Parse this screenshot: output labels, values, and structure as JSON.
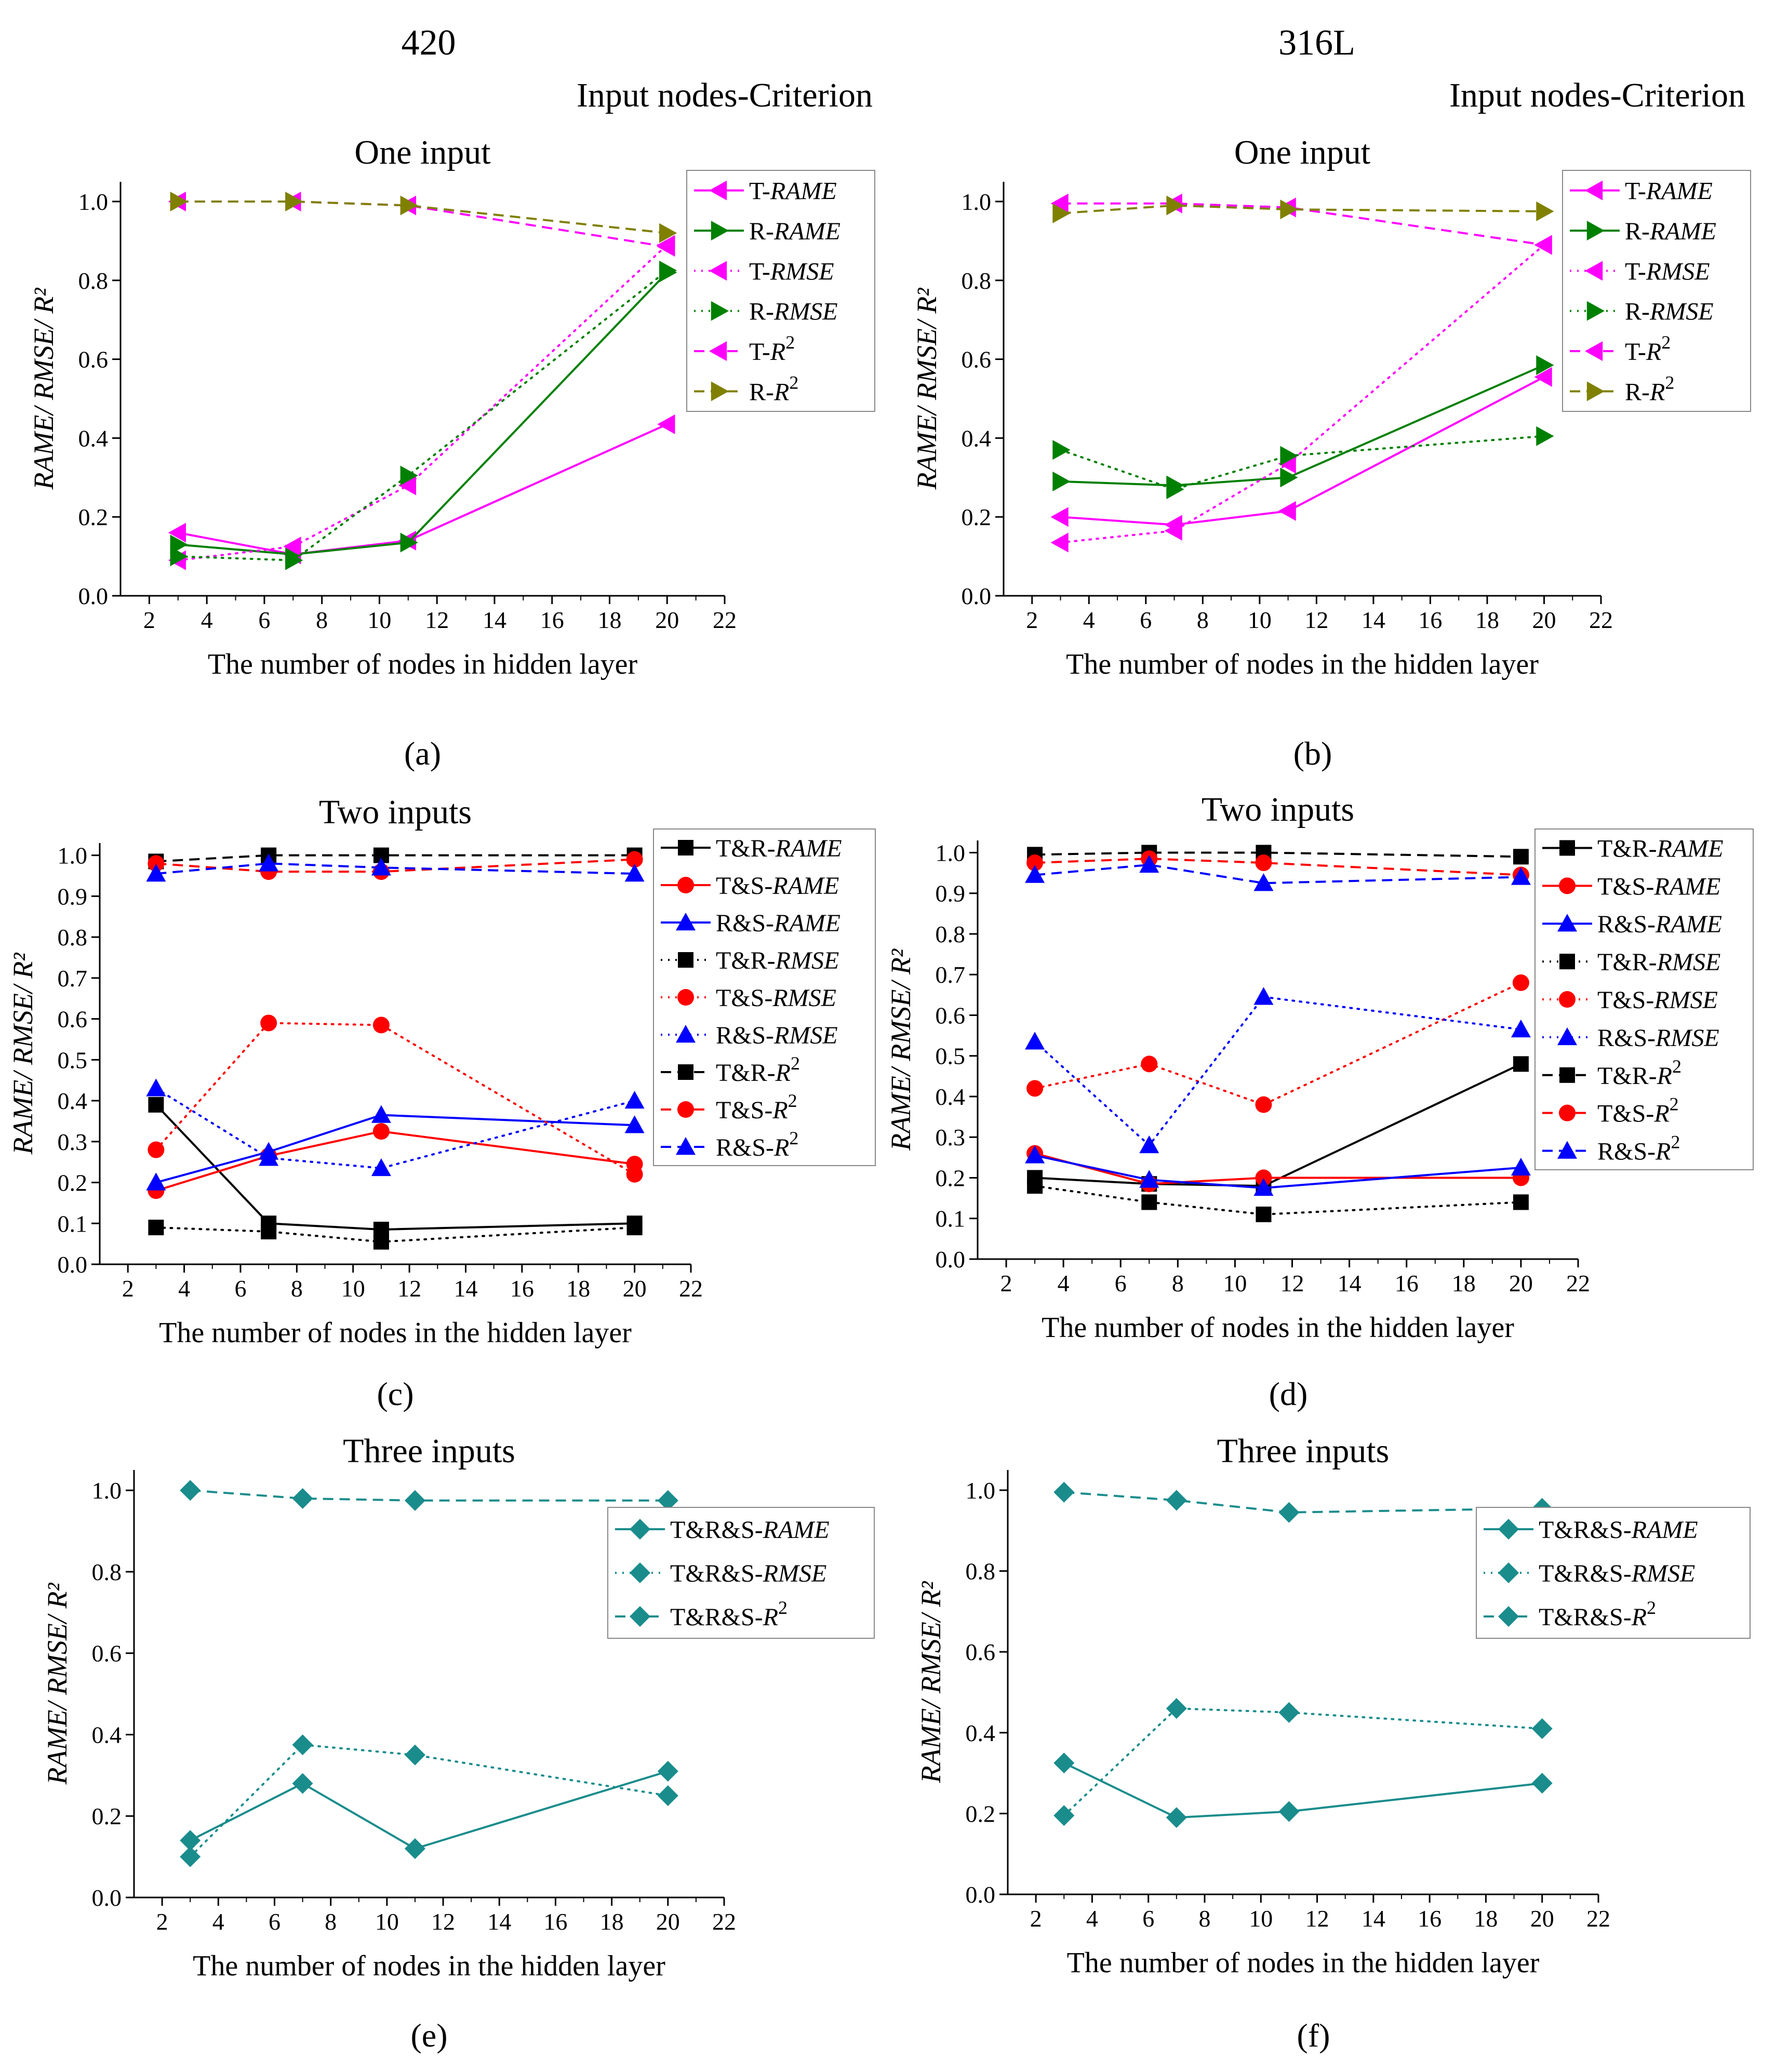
{
  "header": {
    "left": "420",
    "right": "316L"
  },
  "colors": {
    "magenta": "#ff00ff",
    "green": "#008000",
    "olive": "#808000",
    "black": "#000000",
    "red": "#ff0000",
    "blue": "#0000ff",
    "teal": "#1a8c8c"
  },
  "chart_data": [
    {
      "id": "a",
      "type": "line",
      "label": "(a)",
      "title": "One input",
      "criterion": "Input nodes-Criterion",
      "xlabel": "The number of nodes in hidden layer",
      "ylabel": "RAME/ RMSE/ R²",
      "xlim": [
        1,
        22
      ],
      "xticks": [
        2,
        4,
        6,
        8,
        10,
        12,
        14,
        16,
        18,
        20,
        22
      ],
      "ylim": [
        0,
        1.05
      ],
      "yticks": [
        0.0,
        0.2,
        0.4,
        0.6,
        0.8,
        1.0
      ],
      "ydec": 1,
      "x": [
        3,
        7,
        11,
        20
      ],
      "legend_position": "top-right",
      "series": [
        {
          "name": "T-",
          "metric": "RAME",
          "sup": "",
          "values": [
            0.16,
            0.105,
            0.14,
            0.435
          ],
          "color": "#ff00ff",
          "dash": "solid",
          "marker": "tri-left"
        },
        {
          "name": "R-",
          "metric": "RAME",
          "sup": "",
          "values": [
            0.13,
            0.105,
            0.135,
            0.82
          ],
          "color": "#008000",
          "dash": "solid",
          "marker": "tri-right"
        },
        {
          "name": "T-",
          "metric": "RMSE",
          "sup": "",
          "values": [
            0.09,
            0.125,
            0.28,
            0.89
          ],
          "color": "#ff00ff",
          "dash": "dot",
          "marker": "tri-left"
        },
        {
          "name": "R-",
          "metric": "RMSE",
          "sup": "",
          "values": [
            0.1,
            0.09,
            0.305,
            0.825
          ],
          "color": "#008000",
          "dash": "dot",
          "marker": "tri-right"
        },
        {
          "name": "T-",
          "metric": "R",
          "sup": "2",
          "values": [
            1.0,
            1.0,
            0.99,
            0.885
          ],
          "color": "#ff00ff",
          "dash": "dash",
          "marker": "tri-left"
        },
        {
          "name": "R-",
          "metric": "R",
          "sup": "2",
          "values": [
            1.0,
            1.0,
            0.99,
            0.92
          ],
          "color": "#808000",
          "dash": "dash",
          "marker": "tri-right"
        }
      ]
    },
    {
      "id": "b",
      "type": "line",
      "label": "(b)",
      "title": "One input",
      "criterion": "Input nodes-Criterion",
      "xlabel": "The number of nodes in the hidden layer",
      "ylabel": "RAME/ RMSE/ R²",
      "xlim": [
        1,
        22
      ],
      "xticks": [
        2,
        4,
        6,
        8,
        10,
        12,
        14,
        16,
        18,
        20,
        22
      ],
      "ylim": [
        0,
        1.05
      ],
      "yticks": [
        0.0,
        0.2,
        0.4,
        0.6,
        0.8,
        1.0
      ],
      "ydec": 1,
      "x": [
        3,
        7,
        11,
        20
      ],
      "legend_position": "top-right",
      "series": [
        {
          "name": "T-",
          "metric": "RAME",
          "sup": "",
          "values": [
            0.2,
            0.18,
            0.215,
            0.555
          ],
          "color": "#ff00ff",
          "dash": "solid",
          "marker": "tri-left"
        },
        {
          "name": "R-",
          "metric": "RAME",
          "sup": "",
          "values": [
            0.29,
            0.28,
            0.3,
            0.585
          ],
          "color": "#008000",
          "dash": "solid",
          "marker": "tri-right"
        },
        {
          "name": "T-",
          "metric": "RMSE",
          "sup": "",
          "values": [
            0.135,
            0.165,
            0.335,
            0.89
          ],
          "color": "#ff00ff",
          "dash": "dot",
          "marker": "tri-left"
        },
        {
          "name": "R-",
          "metric": "RMSE",
          "sup": "",
          "values": [
            0.37,
            0.27,
            0.355,
            0.405
          ],
          "color": "#008000",
          "dash": "dot",
          "marker": "tri-right"
        },
        {
          "name": "T-",
          "metric": "R",
          "sup": "2",
          "values": [
            0.995,
            0.995,
            0.985,
            0.89
          ],
          "color": "#ff00ff",
          "dash": "dash",
          "marker": "tri-left"
        },
        {
          "name": "R-",
          "metric": "R",
          "sup": "2",
          "values": [
            0.97,
            0.99,
            0.98,
            0.975
          ],
          "color": "#808000",
          "dash": "dash",
          "marker": "tri-right"
        }
      ]
    },
    {
      "id": "c",
      "type": "line",
      "label": "(c)",
      "title": "Two inputs",
      "xlabel": "The number of nodes in the hidden layer",
      "ylabel": "RAME/ RMSE/ R²",
      "xlim": [
        1,
        22
      ],
      "xticks": [
        2,
        4,
        6,
        8,
        10,
        12,
        14,
        16,
        18,
        20,
        22
      ],
      "ylim": [
        0,
        1.03
      ],
      "yticks": [
        0.0,
        0.1,
        0.2,
        0.3,
        0.4,
        0.5,
        0.6,
        0.7,
        0.8,
        0.9,
        1.0
      ],
      "ydec": 1,
      "x": [
        3,
        7,
        11,
        20
      ],
      "legend_position": "top-right",
      "series": [
        {
          "name": "T&R-",
          "metric": "RAME",
          "sup": "",
          "values": [
            0.39,
            0.1,
            0.085,
            0.1
          ],
          "color": "#000000",
          "dash": "solid",
          "marker": "square"
        },
        {
          "name": "T&S-",
          "metric": "RAME",
          "sup": "",
          "values": [
            0.18,
            0.265,
            0.325,
            0.245
          ],
          "color": "#ff0000",
          "dash": "solid",
          "marker": "circle"
        },
        {
          "name": "R&S-",
          "metric": "RAME",
          "sup": "",
          "values": [
            0.2,
            0.275,
            0.365,
            0.34
          ],
          "color": "#0000ff",
          "dash": "solid",
          "marker": "triangle"
        },
        {
          "name": "T&R-",
          "metric": "RMSE",
          "sup": "",
          "values": [
            0.09,
            0.08,
            0.055,
            0.09
          ],
          "color": "#000000",
          "dash": "dot",
          "marker": "square"
        },
        {
          "name": "T&S-",
          "metric": "RMSE",
          "sup": "",
          "values": [
            0.28,
            0.59,
            0.585,
            0.22
          ],
          "color": "#ff0000",
          "dash": "dot",
          "marker": "circle"
        },
        {
          "name": "R&S-",
          "metric": "RMSE",
          "sup": "",
          "values": [
            0.43,
            0.26,
            0.235,
            0.4
          ],
          "color": "#0000ff",
          "dash": "dot",
          "marker": "triangle"
        },
        {
          "name": "T&R-",
          "metric": "R",
          "sup": "2",
          "values": [
            0.985,
            1.0,
            1.0,
            1.0
          ],
          "color": "#000000",
          "dash": "dash",
          "marker": "square"
        },
        {
          "name": "T&S-",
          "metric": "R",
          "sup": "2",
          "values": [
            0.98,
            0.96,
            0.96,
            0.99
          ],
          "color": "#ff0000",
          "dash": "dash",
          "marker": "circle"
        },
        {
          "name": "R&S-",
          "metric": "R",
          "sup": "2",
          "values": [
            0.955,
            0.98,
            0.97,
            0.955
          ],
          "color": "#0000ff",
          "dash": "dash",
          "marker": "triangle"
        }
      ]
    },
    {
      "id": "d",
      "type": "line",
      "label": "(d)",
      "title": "Two inputs",
      "xlabel": "The number of nodes in the hidden layer",
      "ylabel": "RAME/ RMSE/ R²",
      "xlim": [
        1,
        22
      ],
      "xticks": [
        2,
        4,
        6,
        8,
        10,
        12,
        14,
        16,
        18,
        20,
        22
      ],
      "ylim": [
        0,
        1.03
      ],
      "yticks": [
        0.0,
        0.1,
        0.2,
        0.3,
        0.4,
        0.5,
        0.6,
        0.7,
        0.8,
        0.9,
        1.0
      ],
      "ydec": 1,
      "x": [
        3,
        7,
        11,
        20
      ],
      "legend_position": "top-right",
      "series": [
        {
          "name": "T&R-",
          "metric": "RAME",
          "sup": "",
          "values": [
            0.2,
            0.185,
            0.18,
            0.48
          ],
          "color": "#000000",
          "dash": "solid",
          "marker": "square"
        },
        {
          "name": "T&S-",
          "metric": "RAME",
          "sup": "",
          "values": [
            0.26,
            0.185,
            0.2,
            0.2
          ],
          "color": "#ff0000",
          "dash": "solid",
          "marker": "circle"
        },
        {
          "name": "R&S-",
          "metric": "RAME",
          "sup": "",
          "values": [
            0.255,
            0.195,
            0.175,
            0.225
          ],
          "color": "#0000ff",
          "dash": "solid",
          "marker": "triangle"
        },
        {
          "name": "T&R-",
          "metric": "RMSE",
          "sup": "",
          "values": [
            0.18,
            0.14,
            0.11,
            0.14
          ],
          "color": "#000000",
          "dash": "dot",
          "marker": "square"
        },
        {
          "name": "T&S-",
          "metric": "RMSE",
          "sup": "",
          "values": [
            0.42,
            0.48,
            0.38,
            0.68
          ],
          "color": "#ff0000",
          "dash": "dot",
          "marker": "circle"
        },
        {
          "name": "R&S-",
          "metric": "RMSE",
          "sup": "",
          "values": [
            0.535,
            0.28,
            0.645,
            0.565
          ],
          "color": "#0000ff",
          "dash": "dot",
          "marker": "triangle"
        },
        {
          "name": "T&R-",
          "metric": "R",
          "sup": "2",
          "values": [
            0.995,
            1.0,
            1.0,
            0.99
          ],
          "color": "#000000",
          "dash": "dash",
          "marker": "square"
        },
        {
          "name": "T&S-",
          "metric": "R",
          "sup": "2",
          "values": [
            0.975,
            0.985,
            0.975,
            0.945
          ],
          "color": "#ff0000",
          "dash": "dash",
          "marker": "circle"
        },
        {
          "name": "R&S-",
          "metric": "R",
          "sup": "2",
          "values": [
            0.945,
            0.97,
            0.925,
            0.94
          ],
          "color": "#0000ff",
          "dash": "dash",
          "marker": "triangle"
        }
      ]
    },
    {
      "id": "e",
      "type": "line",
      "label": "(e)",
      "title": "Three inputs",
      "xlabel": "The number of nodes in the hidden layer",
      "ylabel": "RAME/ RMSE/ R²",
      "xlim": [
        1,
        22
      ],
      "xticks": [
        2,
        4,
        6,
        8,
        10,
        12,
        14,
        16,
        18,
        20,
        22
      ],
      "ylim": [
        0,
        1.05
      ],
      "yticks": [
        0.0,
        0.2,
        0.4,
        0.6,
        0.8,
        1.0
      ],
      "ydec": 1,
      "x": [
        3,
        7,
        11,
        20
      ],
      "legend_position": "top-right",
      "series": [
        {
          "name": "T&R&S-",
          "metric": "RAME",
          "sup": "",
          "values": [
            0.14,
            0.28,
            0.12,
            0.31
          ],
          "color": "#1a8c8c",
          "dash": "solid",
          "marker": "diamond"
        },
        {
          "name": "T&R&S-",
          "metric": "RMSE",
          "sup": "",
          "values": [
            0.1,
            0.375,
            0.35,
            0.25
          ],
          "color": "#1a8c8c",
          "dash": "dot",
          "marker": "diamond"
        },
        {
          "name": "T&R&S-",
          "metric": "R",
          "sup": "2",
          "values": [
            1.0,
            0.98,
            0.975,
            0.975
          ],
          "color": "#1a8c8c",
          "dash": "dash",
          "marker": "diamond"
        }
      ]
    },
    {
      "id": "f",
      "type": "line",
      "label": "(f)",
      "title": "Three inputs",
      "xlabel": "The number of nodes in the hidden layer",
      "ylabel": "RAME/ RMSE/ R²",
      "xlim": [
        1,
        22
      ],
      "xticks": [
        2,
        4,
        6,
        8,
        10,
        12,
        14,
        16,
        18,
        20,
        22
      ],
      "ylim": [
        0,
        1.05
      ],
      "yticks": [
        0.0,
        0.2,
        0.4,
        0.6,
        0.8,
        1.0
      ],
      "ydec": 1,
      "x": [
        3,
        7,
        11,
        20
      ],
      "legend_position": "top-right",
      "series": [
        {
          "name": "T&R&S-",
          "metric": "RAME",
          "sup": "",
          "values": [
            0.325,
            0.19,
            0.205,
            0.275
          ],
          "color": "#1a8c8c",
          "dash": "solid",
          "marker": "diamond"
        },
        {
          "name": "T&R&S-",
          "metric": "RMSE",
          "sup": "",
          "values": [
            0.195,
            0.46,
            0.45,
            0.41
          ],
          "color": "#1a8c8c",
          "dash": "dot",
          "marker": "diamond"
        },
        {
          "name": "T&R&S-",
          "metric": "R",
          "sup": "2",
          "values": [
            0.995,
            0.975,
            0.945,
            0.955
          ],
          "color": "#1a8c8c",
          "dash": "dash",
          "marker": "diamond"
        }
      ]
    }
  ]
}
